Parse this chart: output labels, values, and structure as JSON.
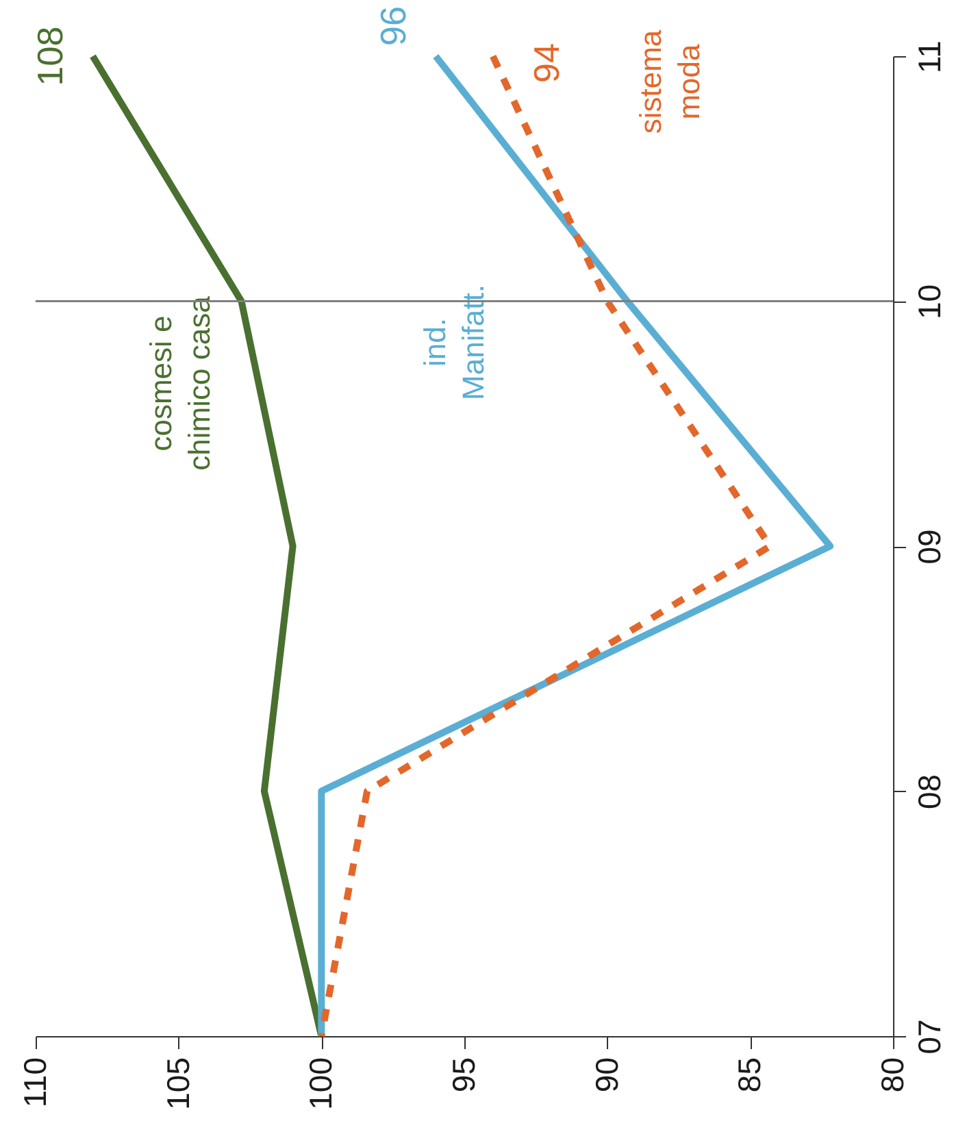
{
  "chart_data": {
    "type": "line",
    "orientation": "horizontal",
    "categories": [
      "11",
      "10",
      "09",
      "08",
      "07"
    ],
    "series": [
      {
        "name": "cosmesi e chimico casa",
        "color": "#4a7030",
        "values": [
          108,
          102.8,
          101,
          102,
          100
        ],
        "value_labels": [
          "108",
          null,
          null,
          null,
          null
        ]
      },
      {
        "name": "ind. Manifatt.",
        "color": "#5aaed3",
        "values": [
          96,
          89.3,
          82.2,
          100,
          100
        ],
        "value_labels": [
          "96",
          null,
          null,
          null,
          null
        ]
      },
      {
        "name": "sistema moda",
        "color": "#e3672a",
        "line_style": "dashed",
        "values": [
          94,
          90,
          84.3,
          98.4,
          100
        ],
        "value_labels": [
          "94",
          null,
          null,
          null,
          null
        ]
      }
    ],
    "xlim": [
      110,
      80
    ],
    "xticks": [
      110,
      105,
      100,
      95,
      90,
      85,
      80
    ],
    "grid": false,
    "ref_lines": [
      {
        "axis": "y",
        "value": "10",
        "color": "#808080"
      }
    ]
  }
}
